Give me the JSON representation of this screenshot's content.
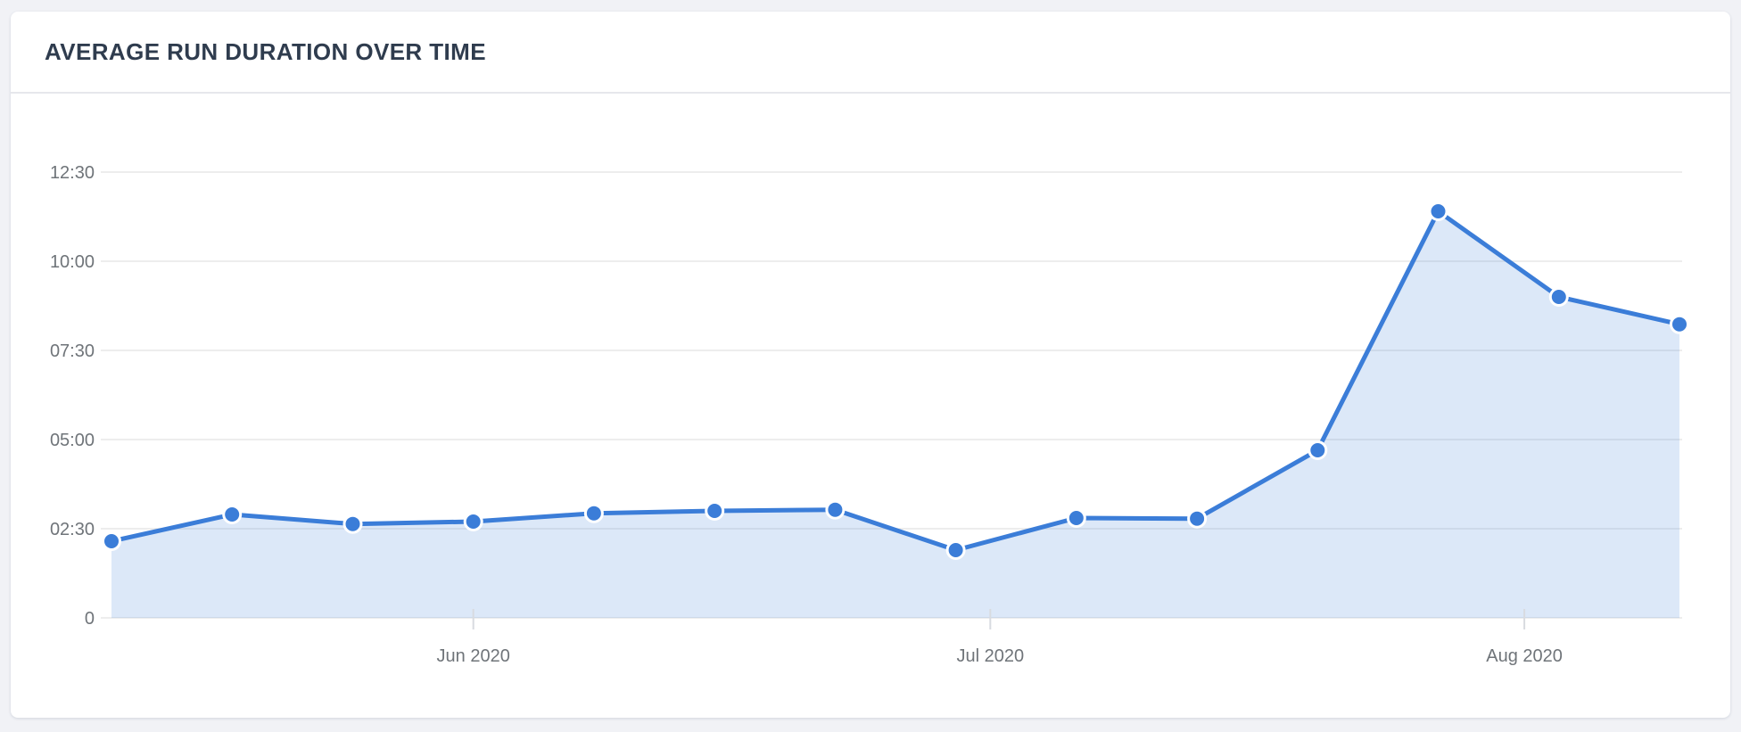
{
  "page": {
    "background": "#f1f2f6"
  },
  "card": {
    "title": "AVERAGE RUN DURATION OVER TIME"
  },
  "chart_data": {
    "type": "area",
    "title": "AVERAGE RUN DURATION OVER TIME",
    "xlabel": "",
    "ylabel": "",
    "legend": "none",
    "grid": true,
    "x_unit": "date",
    "x_range_days": 91,
    "ylim_seconds": [
      0,
      800
    ],
    "y_ticks": [
      {
        "label": "12:30",
        "seconds": 750
      },
      {
        "label": "10:00",
        "seconds": 600
      },
      {
        "label": "07:30",
        "seconds": 450
      },
      {
        "label": "05:00",
        "seconds": 300
      },
      {
        "label": "02:30",
        "seconds": 150
      },
      {
        "label": "0",
        "seconds": 0
      }
    ],
    "x_ticks": [
      {
        "label": "Jun 2020",
        "day_offset": 21
      },
      {
        "label": "Jul 2020",
        "day_offset": 51
      },
      {
        "label": "Aug 2020",
        "day_offset": 82
      }
    ],
    "points": [
      {
        "date": "2020-05-11",
        "day_offset": 0,
        "value_seconds": 129,
        "value_label": "02:09"
      },
      {
        "date": "2020-05-18",
        "day_offset": 7,
        "value_seconds": 174,
        "value_label": "02:54"
      },
      {
        "date": "2020-05-25",
        "day_offset": 14,
        "value_seconds": 158,
        "value_label": "02:38"
      },
      {
        "date": "2020-06-01",
        "day_offset": 21,
        "value_seconds": 162,
        "value_label": "02:42"
      },
      {
        "date": "2020-06-08",
        "day_offset": 28,
        "value_seconds": 176,
        "value_label": "02:56"
      },
      {
        "date": "2020-06-15",
        "day_offset": 35,
        "value_seconds": 180,
        "value_label": "03:00"
      },
      {
        "date": "2020-06-22",
        "day_offset": 42,
        "value_seconds": 182,
        "value_label": "03:02"
      },
      {
        "date": "2020-06-29",
        "day_offset": 49,
        "value_seconds": 114,
        "value_label": "01:54"
      },
      {
        "date": "2020-07-06",
        "day_offset": 56,
        "value_seconds": 168,
        "value_label": "02:48"
      },
      {
        "date": "2020-07-13",
        "day_offset": 63,
        "value_seconds": 167,
        "value_label": "02:47"
      },
      {
        "date": "2020-07-20",
        "day_offset": 70,
        "value_seconds": 282,
        "value_label": "04:42"
      },
      {
        "date": "2020-07-27",
        "day_offset": 77,
        "value_seconds": 684,
        "value_label": "11:24"
      },
      {
        "date": "2020-08-03",
        "day_offset": 84,
        "value_seconds": 540,
        "value_label": "09:00"
      },
      {
        "date": "2020-08-10",
        "day_offset": 91,
        "value_seconds": 494,
        "value_label": "08:14"
      }
    ],
    "colors": {
      "line": "#3b7dd8",
      "dot": "#3b7dd8",
      "dot_ring": "#ffffff",
      "fill": "#3b7dd8",
      "fill_opacity": 0.18,
      "grid": "#e7e7e7",
      "axis_tick": "#d8dbe0",
      "axis_label": "#6f7479",
      "title": "#2f3c4e",
      "card_background": "#ffffff",
      "divider": "#e6e7ec"
    }
  }
}
